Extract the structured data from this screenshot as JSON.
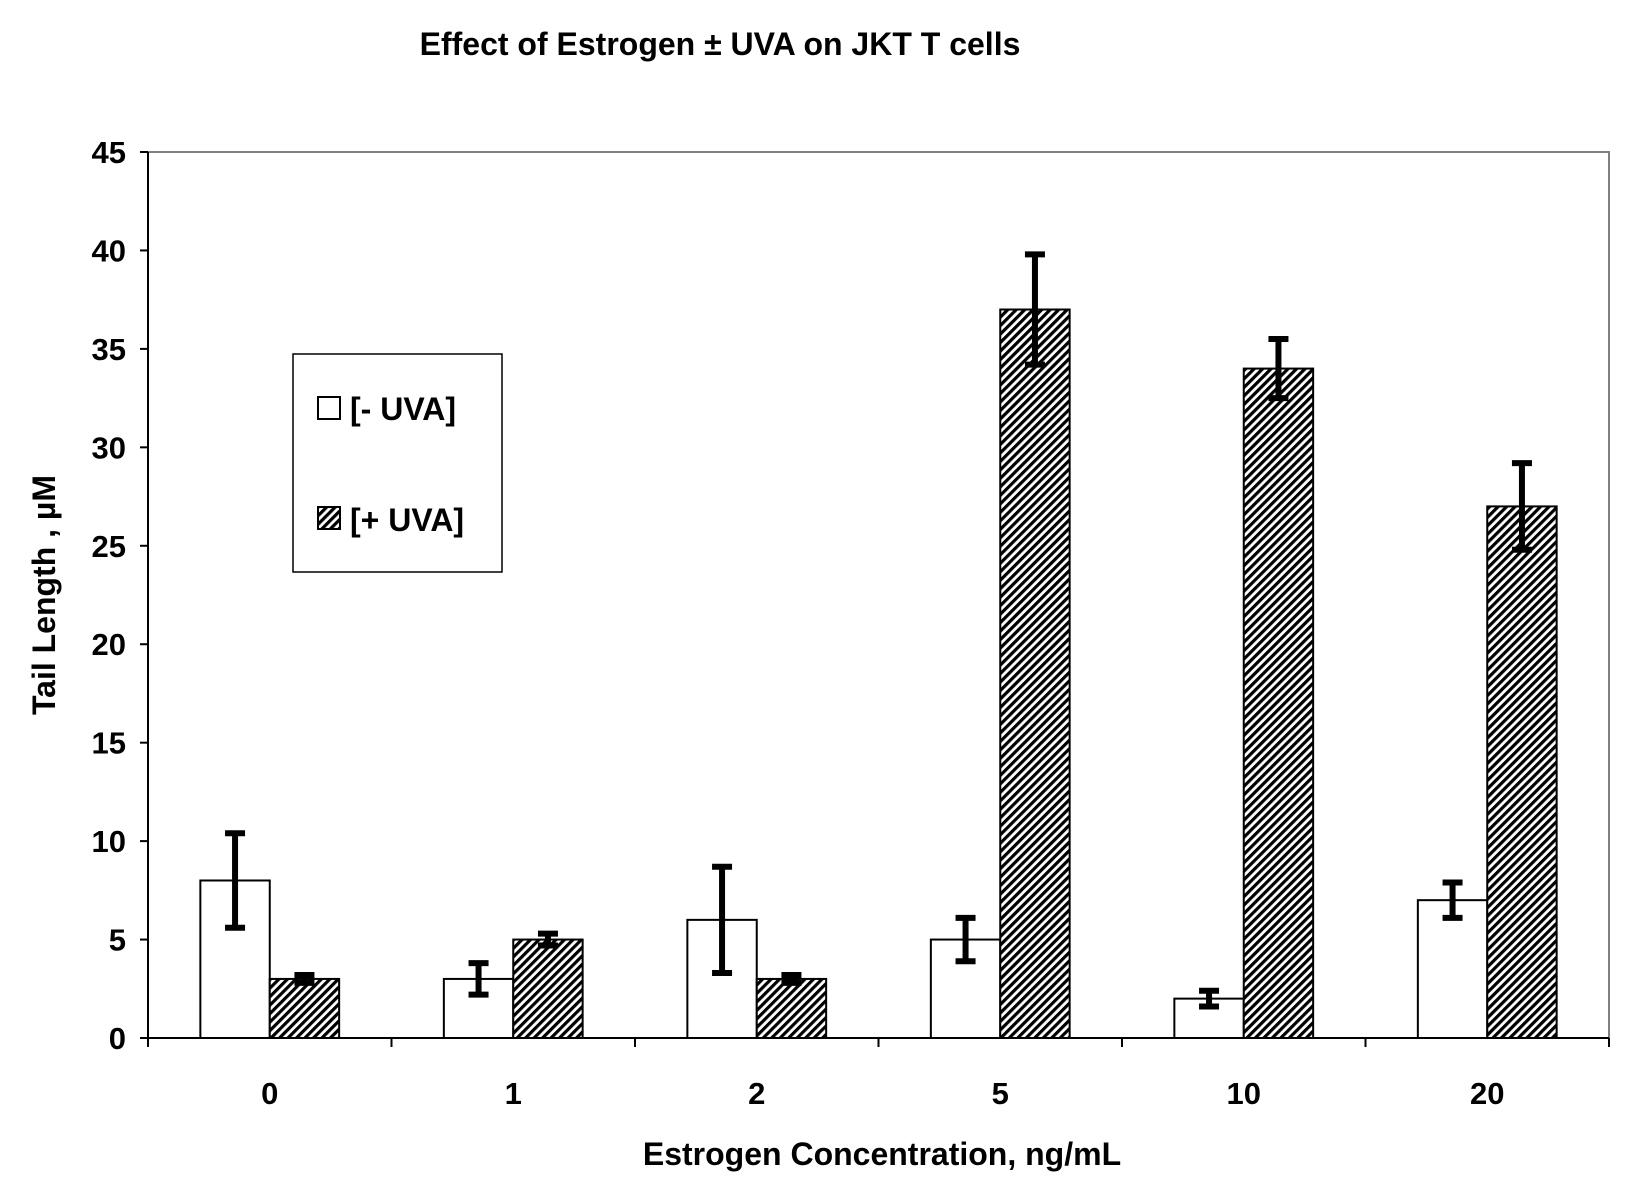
{
  "chart_data": {
    "type": "bar",
    "title": "Effect of Estrogen ± UVA on JKT T cells",
    "xlabel": "Estrogen Concentration, ng/mL",
    "ylabel": "Tail Length , µM",
    "categories": [
      "0",
      "1",
      "2",
      "5",
      "10",
      "20"
    ],
    "ylim": [
      0,
      45
    ],
    "yticks": [
      "0",
      "5",
      "10",
      "15",
      "20",
      "25",
      "30",
      "35",
      "40",
      "45"
    ],
    "grid": false,
    "legend_position": "upper-left inside plot",
    "series": [
      {
        "name": "[- UVA]",
        "fill": "#ffffff",
        "pattern": "none",
        "values": [
          8,
          3,
          6,
          5,
          2,
          7
        ],
        "errors": [
          2.4,
          0.8,
          2.7,
          1.1,
          0.4,
          0.9
        ]
      },
      {
        "name": "[+ UVA]",
        "fill": "#000000",
        "pattern": "diagonal-hatch",
        "values": [
          3,
          5,
          3,
          37,
          34,
          27
        ],
        "errors": [
          0.2,
          0.3,
          0.2,
          2.8,
          1.5,
          2.2
        ]
      }
    ]
  }
}
